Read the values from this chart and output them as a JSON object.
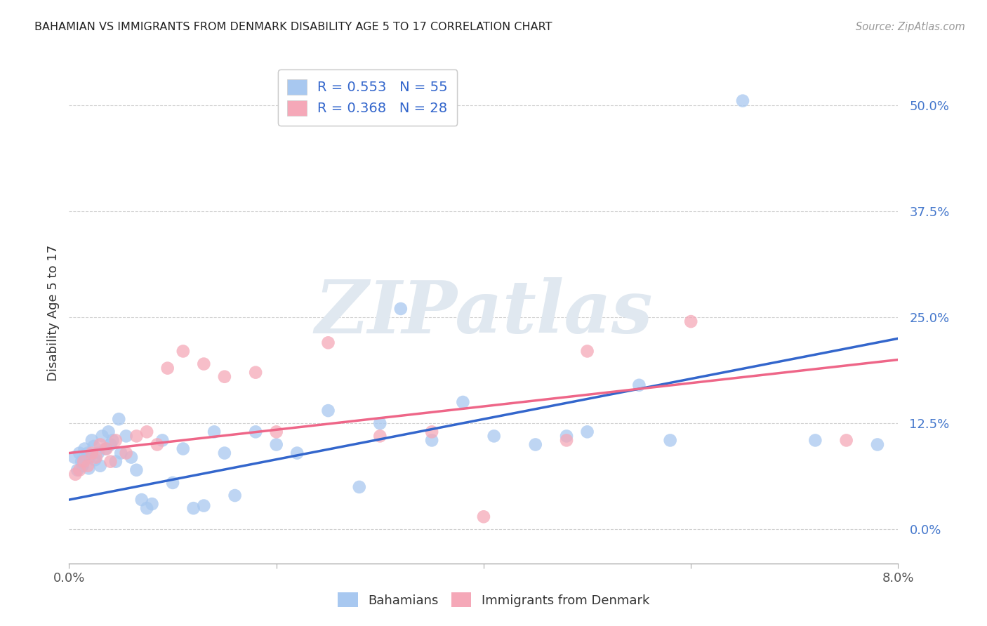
{
  "title": "BAHAMIAN VS IMMIGRANTS FROM DENMARK DISABILITY AGE 5 TO 17 CORRELATION CHART",
  "source": "Source: ZipAtlas.com",
  "ylabel": "Disability Age 5 to 17",
  "ytick_values": [
    0.0,
    12.5,
    25.0,
    37.5,
    50.0
  ],
  "xlim": [
    0.0,
    8.0
  ],
  "ylim": [
    -4.0,
    55.0
  ],
  "legend_r_blue": "R = 0.553",
  "legend_n_blue": "N = 55",
  "legend_r_pink": "R = 0.368",
  "legend_n_pink": "N = 28",
  "dot_blue_color": "#a8c8f0",
  "dot_pink_color": "#f5a8b8",
  "line_blue_color": "#3366cc",
  "line_pink_color": "#ee6688",
  "ytick_color": "#4477cc",
  "watermark_text": "ZIPatlas",
  "bahamian_x": [
    0.05,
    0.08,
    0.1,
    0.12,
    0.13,
    0.15,
    0.16,
    0.18,
    0.19,
    0.2,
    0.22,
    0.24,
    0.25,
    0.28,
    0.3,
    0.32,
    0.35,
    0.38,
    0.4,
    0.42,
    0.45,
    0.48,
    0.5,
    0.55,
    0.6,
    0.65,
    0.7,
    0.75,
    0.8,
    0.9,
    1.0,
    1.1,
    1.2,
    1.3,
    1.4,
    1.5,
    1.6,
    1.8,
    2.0,
    2.2,
    2.5,
    2.8,
    3.0,
    3.2,
    3.5,
    3.8,
    4.1,
    4.5,
    4.8,
    5.0,
    5.5,
    5.8,
    6.5,
    7.2,
    7.8
  ],
  "bahamian_y": [
    8.5,
    7.0,
    9.0,
    8.0,
    7.5,
    9.5,
    8.8,
    9.0,
    7.2,
    8.5,
    10.5,
    9.8,
    8.2,
    9.0,
    7.5,
    11.0,
    9.5,
    11.5,
    10.0,
    10.5,
    8.0,
    13.0,
    9.0,
    11.0,
    8.5,
    7.0,
    3.5,
    2.5,
    3.0,
    10.5,
    5.5,
    9.5,
    2.5,
    2.8,
    11.5,
    9.0,
    4.0,
    11.5,
    10.0,
    9.0,
    14.0,
    5.0,
    12.5,
    26.0,
    10.5,
    15.0,
    11.0,
    10.0,
    11.0,
    11.5,
    17.0,
    10.5,
    50.5,
    10.5,
    10.0
  ],
  "denmark_x": [
    0.06,
    0.1,
    0.14,
    0.18,
    0.22,
    0.26,
    0.3,
    0.36,
    0.4,
    0.45,
    0.55,
    0.65,
    0.75,
    0.85,
    0.95,
    1.1,
    1.3,
    1.5,
    1.8,
    2.0,
    2.5,
    3.0,
    3.5,
    4.0,
    4.8,
    5.0,
    6.0,
    7.5
  ],
  "denmark_y": [
    6.5,
    7.0,
    8.0,
    7.5,
    9.0,
    8.5,
    10.0,
    9.5,
    8.0,
    10.5,
    9.0,
    11.0,
    11.5,
    10.0,
    19.0,
    21.0,
    19.5,
    18.0,
    18.5,
    11.5,
    22.0,
    11.0,
    11.5,
    1.5,
    10.5,
    21.0,
    24.5,
    10.5
  ],
  "blue_line_x": [
    0.0,
    8.0
  ],
  "blue_line_y": [
    3.5,
    22.5
  ],
  "pink_line_x": [
    0.0,
    8.0
  ],
  "pink_line_y": [
    9.0,
    20.0
  ],
  "bottom_legend_labels": [
    "Bahamians",
    "Immigrants from Denmark"
  ]
}
